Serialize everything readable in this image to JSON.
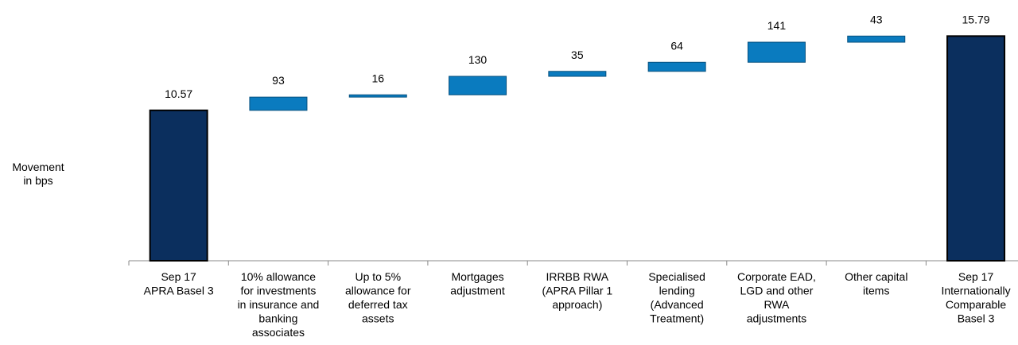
{
  "chart_data": {
    "type": "waterfall",
    "y_label": [
      "Movement",
      "in bps"
    ],
    "categories": [
      [
        "Sep 17",
        "APRA Basel 3"
      ],
      [
        "10% allowance",
        "for investments",
        "in insurance and",
        "banking",
        "associates"
      ],
      [
        "Up to 5%",
        "allowance for",
        "deferred tax",
        "assets"
      ],
      [
        "Mortgages",
        "adjustment"
      ],
      [
        "IRRBB RWA",
        "(APRA Pillar 1",
        "approach)"
      ],
      [
        "Specialised",
        "lending",
        "(Advanced",
        "Treatment)"
      ],
      [
        "Corporate EAD,",
        "LGD and other",
        "RWA",
        "adjustments"
      ],
      [
        "Other capital",
        "items"
      ],
      [
        "Sep 17",
        "Internationally",
        "Comparable",
        "Basel 3"
      ]
    ],
    "values": [
      10.57,
      93,
      16,
      130,
      35,
      64,
      141,
      43,
      15.79
    ],
    "measure": [
      "absolute",
      "relative",
      "relative",
      "relative",
      "relative",
      "relative",
      "relative",
      "relative",
      "total"
    ],
    "total_color": "#0b2f5e",
    "delta_color": "#0a7bbf"
  }
}
